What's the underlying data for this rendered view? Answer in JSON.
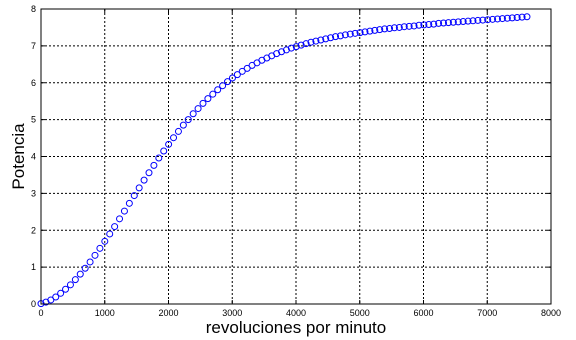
{
  "chart_data": {
    "type": "scatter",
    "title": "",
    "xlabel": "revoluciones por minuto",
    "ylabel": "Potencia",
    "xlim": [
      0,
      8000
    ],
    "ylim": [
      0,
      8
    ],
    "x_ticks": [
      "0",
      "1000",
      "2000",
      "3000",
      "4000",
      "5000",
      "6000",
      "7000",
      "8000"
    ],
    "y_ticks": [
      "0",
      "1",
      "2",
      "3",
      "4",
      "5",
      "6",
      "7",
      "8"
    ],
    "grid": true,
    "marker": "circle-open",
    "marker_color": "#0000ff",
    "series": [
      {
        "x": [
          0,
          77,
          154,
          231,
          308,
          385,
          462,
          539,
          616,
          693,
          770,
          847,
          924,
          1001,
          1078,
          1155,
          1232,
          1309,
          1386,
          1463,
          1540,
          1617,
          1694,
          1771,
          1848,
          1925,
          2002,
          2079,
          2156,
          2233,
          2310,
          2387,
          2464,
          2541,
          2618,
          2695,
          2772,
          2849,
          2926,
          3003,
          3080,
          3157,
          3234,
          3311,
          3388,
          3465,
          3542,
          3619,
          3696,
          3773,
          3850,
          3927,
          4004,
          4081,
          4158,
          4235,
          4312,
          4389,
          4466,
          4543,
          4620,
          4697,
          4774,
          4851,
          4928,
          5005,
          5082,
          5159,
          5236,
          5313,
          5390,
          5467,
          5544,
          5621,
          5698,
          5775,
          5852,
          5929,
          6006,
          6083,
          6160,
          6237,
          6314,
          6391,
          6468,
          6545,
          6622,
          6699,
          6776,
          6853,
          6930,
          7007,
          7084,
          7161,
          7238,
          7315,
          7392,
          7469,
          7546,
          7623
        ],
        "y": [
          0.01,
          0.05,
          0.11,
          0.19,
          0.29,
          0.4,
          0.52,
          0.66,
          0.81,
          0.97,
          1.14,
          1.32,
          1.51,
          1.7,
          1.9,
          2.1,
          2.31,
          2.52,
          2.73,
          2.94,
          3.15,
          3.36,
          3.56,
          3.76,
          3.96,
          4.15,
          4.33,
          4.51,
          4.68,
          4.85,
          5.0,
          5.16,
          5.3,
          5.44,
          5.57,
          5.69,
          5.81,
          5.92,
          6.03,
          6.13,
          6.22,
          6.31,
          6.39,
          6.47,
          6.54,
          6.61,
          6.67,
          6.73,
          6.79,
          6.84,
          6.89,
          6.94,
          6.98,
          7.02,
          7.06,
          7.1,
          7.13,
          7.16,
          7.19,
          7.22,
          7.25,
          7.27,
          7.3,
          7.32,
          7.34,
          7.36,
          7.38,
          7.4,
          7.42,
          7.44,
          7.46,
          7.47,
          7.49,
          7.5,
          7.52,
          7.53,
          7.54,
          7.56,
          7.57,
          7.58,
          7.59,
          7.61,
          7.62,
          7.63,
          7.64,
          7.65,
          7.66,
          7.67,
          7.68,
          7.69,
          7.7,
          7.71,
          7.72,
          7.73,
          7.74,
          7.75,
          7.76,
          7.77,
          7.78,
          7.79
        ]
      }
    ]
  }
}
